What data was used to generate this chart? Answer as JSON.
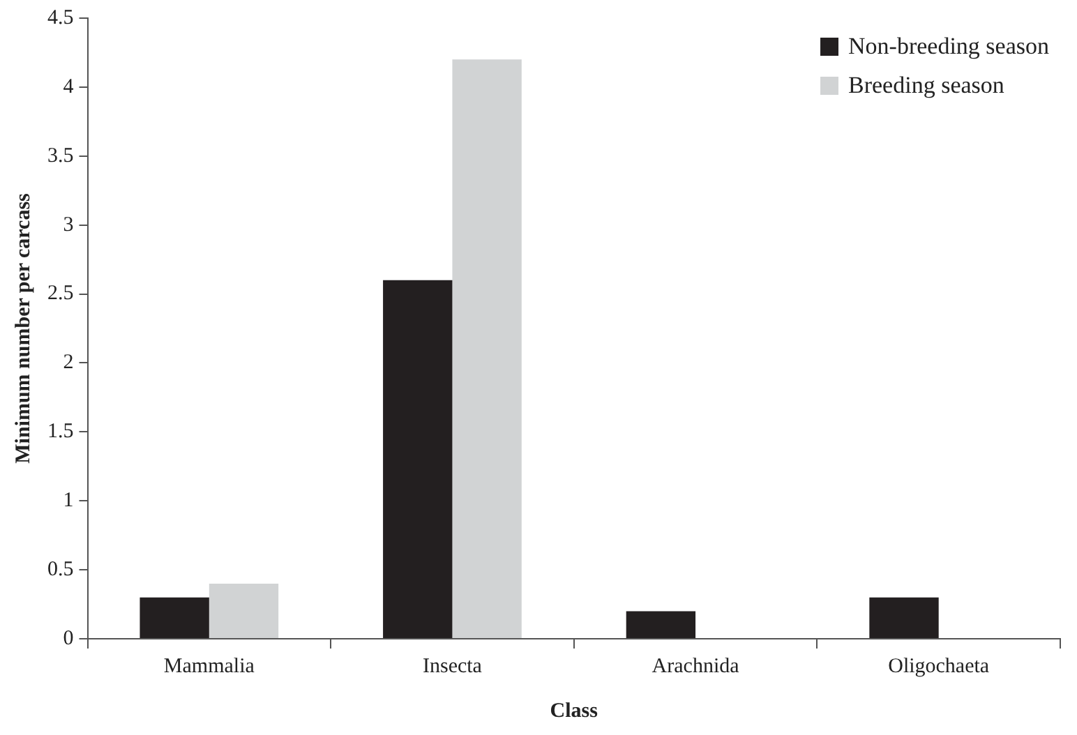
{
  "chart_data": {
    "type": "bar",
    "xlabel": "Class",
    "ylabel": "Minimum number per carcass",
    "categories": [
      "Mammalia",
      "Insecta",
      "Arachnida",
      "Oligochaeta"
    ],
    "series": [
      {
        "name": "Non-breeding season",
        "color": "#231f20",
        "values": [
          0.3,
          2.6,
          0.2,
          0.3
        ]
      },
      {
        "name": "Breeding season",
        "color": "#d1d3d4",
        "values": [
          0.4,
          4.2,
          0,
          0
        ]
      }
    ],
    "ylim": [
      0,
      4.5
    ],
    "yticks": [
      0,
      0.5,
      1,
      1.5,
      2,
      2.5,
      3,
      3.5,
      4,
      4.5
    ],
    "grid": false,
    "legend": "top right"
  }
}
